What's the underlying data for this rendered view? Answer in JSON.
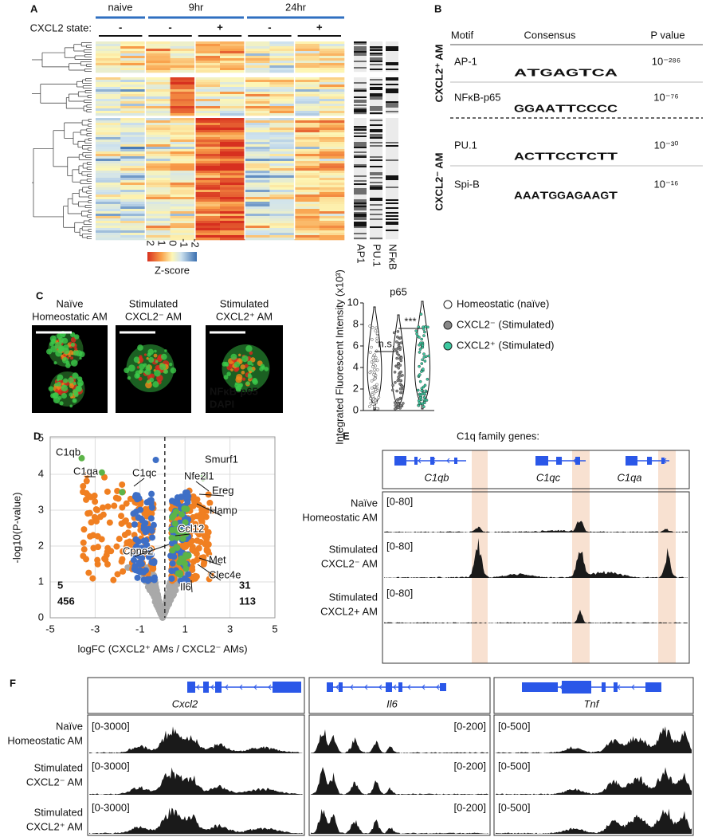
{
  "panel_a": {
    "letter": "A",
    "timepoints": [
      "naive",
      "9hr",
      "24hr"
    ],
    "state_label": "CXCL2 state:",
    "states": [
      "-",
      "-",
      "+",
      "-",
      "+"
    ],
    "colorbar_ticks": [
      "2",
      "1",
      "0",
      "-1",
      "-2"
    ],
    "colorbar_title": "Z-score",
    "motif_columns": [
      "AP1",
      "PU.1",
      "NFκB"
    ]
  },
  "panel_b": {
    "letter": "B",
    "headers": [
      "Motif",
      "Consensus",
      "P value"
    ],
    "groups": [
      "CXCL2⁺ AM",
      "CXCL2⁻ AM"
    ],
    "rows": [
      {
        "motif": "AP-1",
        "logo": [
          "A",
          "T",
          "G",
          "A",
          "G",
          "T",
          "C",
          "A"
        ],
        "p_value": "10⁻²⁸⁶"
      },
      {
        "motif": "NFκB-p65",
        "logo": [
          "G",
          "G",
          "A",
          "A",
          "T",
          "T",
          "C",
          "C",
          "C",
          "C"
        ],
        "p_value": "10⁻⁷⁶"
      },
      {
        "motif": "PU.1",
        "logo": [
          "A",
          "C",
          "T",
          "T",
          "C",
          "C",
          "T",
          "C",
          "T",
          "T"
        ],
        "p_value": "10⁻³⁰"
      },
      {
        "motif": "Spi-B",
        "logo": [
          "A",
          "A",
          "A",
          "T",
          "G",
          "G",
          "A",
          "G",
          "A",
          "A",
          "G",
          "T"
        ],
        "p_value": "10⁻¹⁶"
      }
    ]
  },
  "panel_c": {
    "letter": "C",
    "images": [
      [
        "Naïve",
        "Homeostatic AM"
      ],
      [
        "Stimulated",
        "CXCL2⁻ AM"
      ],
      [
        "Stimulated",
        "CXCL2⁺ AM"
      ]
    ],
    "stains": [
      "NFκB-p65",
      "DAPI"
    ],
    "plot_title": "p65",
    "y_label": "Integrated Fluorescent Intensity (x10³)",
    "yticks": [
      "0",
      "2",
      "4",
      "6",
      "8",
      "10"
    ],
    "significance": [
      "n.s.",
      "***"
    ],
    "legend": [
      "Homeostatic (naïve)",
      "CXCL2⁻ (Stimulated)",
      "CXCL2⁺ (Stimulated)"
    ]
  },
  "panel_d": {
    "letter": "D",
    "y_label": "-log10(P-value)",
    "x_label": "logFC (CXCL2⁺ AMs / CXCL2⁻ AMs)",
    "xticks": [
      "-5",
      "-3",
      "-1",
      "1",
      "3",
      "5"
    ],
    "yticks": [
      "0",
      "1",
      "2",
      "3",
      "4",
      "5"
    ],
    "genes": [
      "C1qb",
      "C1qa",
      "C1qc",
      "Ccl12",
      "Cpne2",
      "Nfe2l1",
      "Smurf1",
      "Ereg",
      "Hamp",
      "Met",
      "Clec4e",
      "Il6"
    ],
    "counts": [
      "5",
      "456",
      "31",
      "113"
    ]
  },
  "panel_e": {
    "letter": "E",
    "title": "C1q family genes:",
    "genes": [
      "C1qb",
      "C1qc",
      "C1qa"
    ],
    "tracks": [
      [
        "Naïve",
        "Homeostatic AM"
      ],
      [
        "Stimulated",
        "CXCL2⁻ AM"
      ],
      [
        "Stimulated",
        "CXCL2+ AM"
      ]
    ],
    "ranges": [
      "[0-80]",
      "[0-80]",
      "[0-80]"
    ]
  },
  "panel_f": {
    "letter": "F",
    "genes": [
      "Cxcl2",
      "Il6",
      "Tnf"
    ],
    "tracks": [
      [
        "Naïve",
        "Homeostatic AM"
      ],
      [
        "Stimulated",
        "CXCL2⁻ AM"
      ],
      [
        "Stimulated",
        "CXCL2⁺ AM"
      ]
    ],
    "ranges": [
      [
        "[0-3000]",
        "[0-3000]",
        "[0-3000]"
      ],
      [
        "[0-200]",
        "[0-200]",
        "[0-200]"
      ],
      [
        "[0-500]",
        "[0-500]",
        "[0-500]"
      ]
    ]
  }
}
